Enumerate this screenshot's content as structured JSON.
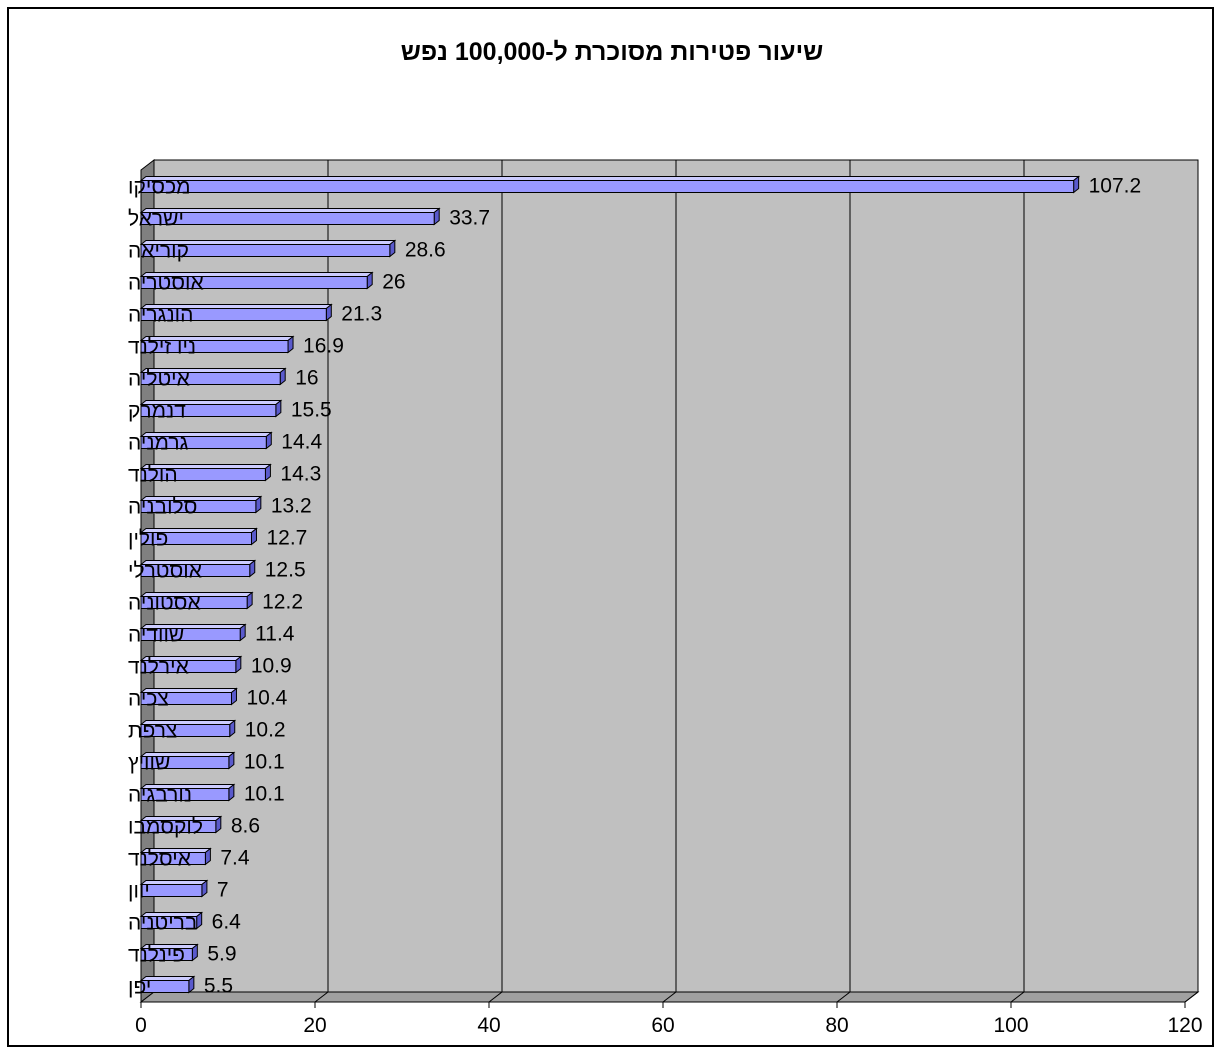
{
  "chart_data": {
    "type": "bar",
    "orientation": "horizontal",
    "title": "שיעור פטירות מסוכרת ל-100,000 נפש",
    "categories": [
      "מכסיקו",
      "ישראל",
      "קוריאה",
      "אוסטריה",
      "הונגריה",
      "ניו זילנד",
      "איטליה",
      "דנמרק",
      "גרמניה",
      "הולנד",
      "סלובניה",
      "פולין",
      "אוסטרלי",
      "אסטוניה",
      "שוודיה",
      "אירלנד",
      "צכיה",
      "צרפת",
      "שוויץ",
      "נורבגיה",
      "לוקסמבו",
      "איסלנד",
      "יוון",
      "בריטניה",
      "פינלנד",
      "יפן"
    ],
    "values": [
      107.2,
      33.7,
      28.6,
      26,
      21.3,
      16.9,
      16,
      15.5,
      14.4,
      14.3,
      13.2,
      12.7,
      12.5,
      12.2,
      11.4,
      10.9,
      10.4,
      10.2,
      10.1,
      10.1,
      8.6,
      7.4,
      7,
      6.4,
      5.9,
      5.5
    ],
    "value_labels": [
      "107.2",
      "33.7",
      "28.6",
      "26",
      "21.3",
      "16.9",
      "16",
      "15.5",
      "14.4",
      "14.3",
      "13.2",
      "12.7",
      "12.5",
      "12.2",
      "11.4",
      "10.9",
      "10.4",
      "10.2",
      "10.1",
      "10.1",
      "8.6",
      "7.4",
      "7",
      "6.4",
      "5.9",
      "5.5"
    ],
    "xlim": [
      0,
      120
    ],
    "xticks": [
      "0",
      "20",
      "40",
      "60",
      "80",
      "100",
      "120"
    ],
    "xlabel": "",
    "ylabel": "",
    "grid": true,
    "legend": "none",
    "colors": {
      "bar_face": "#9999ff",
      "bar_top": "#ccccff",
      "bar_side": "#5a5acc",
      "plot_wall": "#c0c0c0",
      "floor": "#a0a0a0",
      "left_wall": "#808080",
      "grid": "#000000"
    }
  }
}
